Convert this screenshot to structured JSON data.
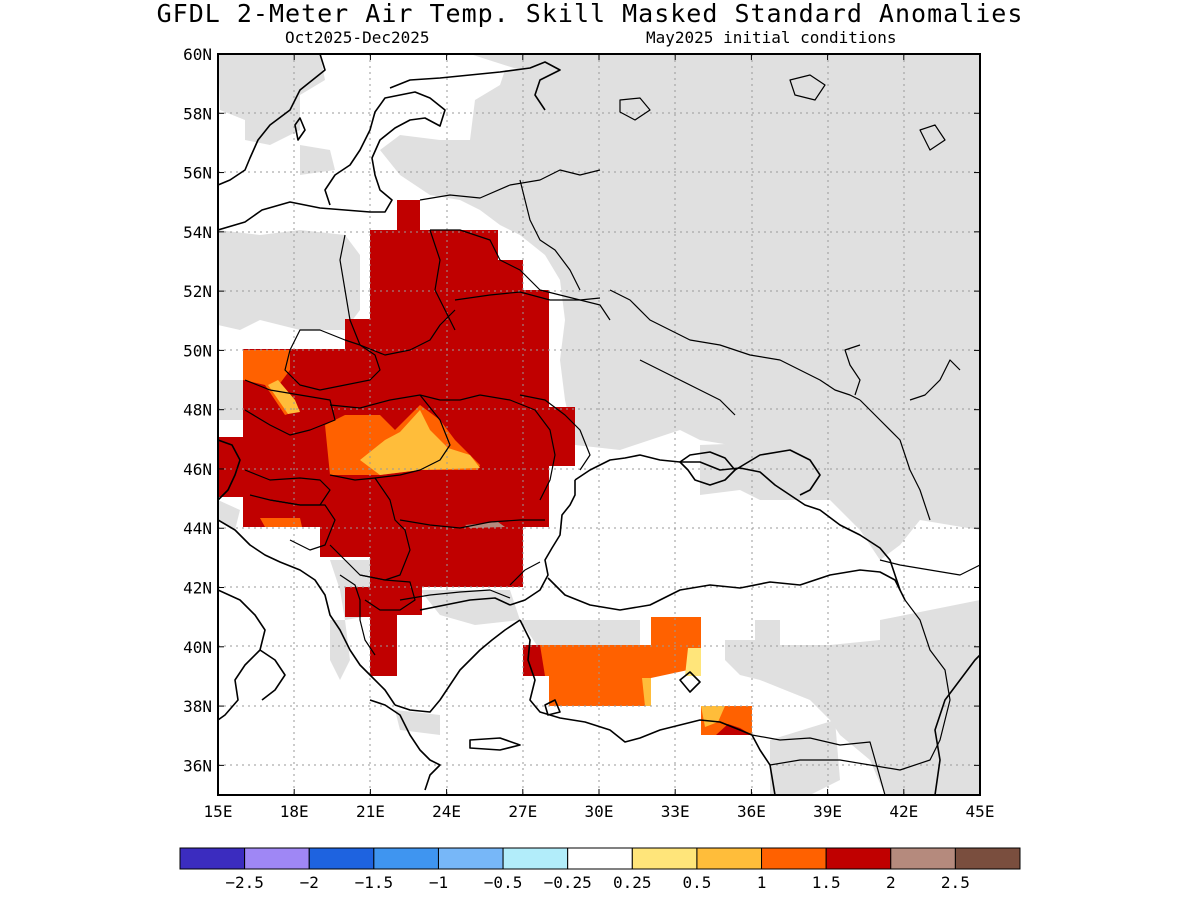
{
  "header": {
    "title": "GFDL 2-Meter Air Temp. Skill Masked Standard Anomalies",
    "period": "Oct2025-Dec2025",
    "init": "May2025 initial conditions"
  },
  "map": {
    "lat_ticks": [
      "60N",
      "58N",
      "56N",
      "54N",
      "52N",
      "50N",
      "48N",
      "46N",
      "44N",
      "42N",
      "40N",
      "38N",
      "36N"
    ],
    "lon_ticks": [
      "15E",
      "18E",
      "21E",
      "24E",
      "27E",
      "30E",
      "33E",
      "36E",
      "39E",
      "42E",
      "45E"
    ],
    "land_mask_color": "#e0e0e0",
    "coast_color": "#000000"
  },
  "colorbar": {
    "colors": [
      "#3b2cbf",
      "#9f87f5",
      "#1e63e0",
      "#3f95f0",
      "#77b7f8",
      "#b2edfa",
      "#ffffff",
      "#ffe57a",
      "#ffbd3a",
      "#ff6100",
      "#c00000",
      "#b58a7d",
      "#7a4e3e"
    ],
    "labels": [
      "−2.5",
      "−2",
      "−1.5",
      "−1",
      "−0.5",
      "−0.25",
      "0.25",
      "0.5",
      "1",
      "1.5",
      "2",
      "2.5"
    ]
  }
}
